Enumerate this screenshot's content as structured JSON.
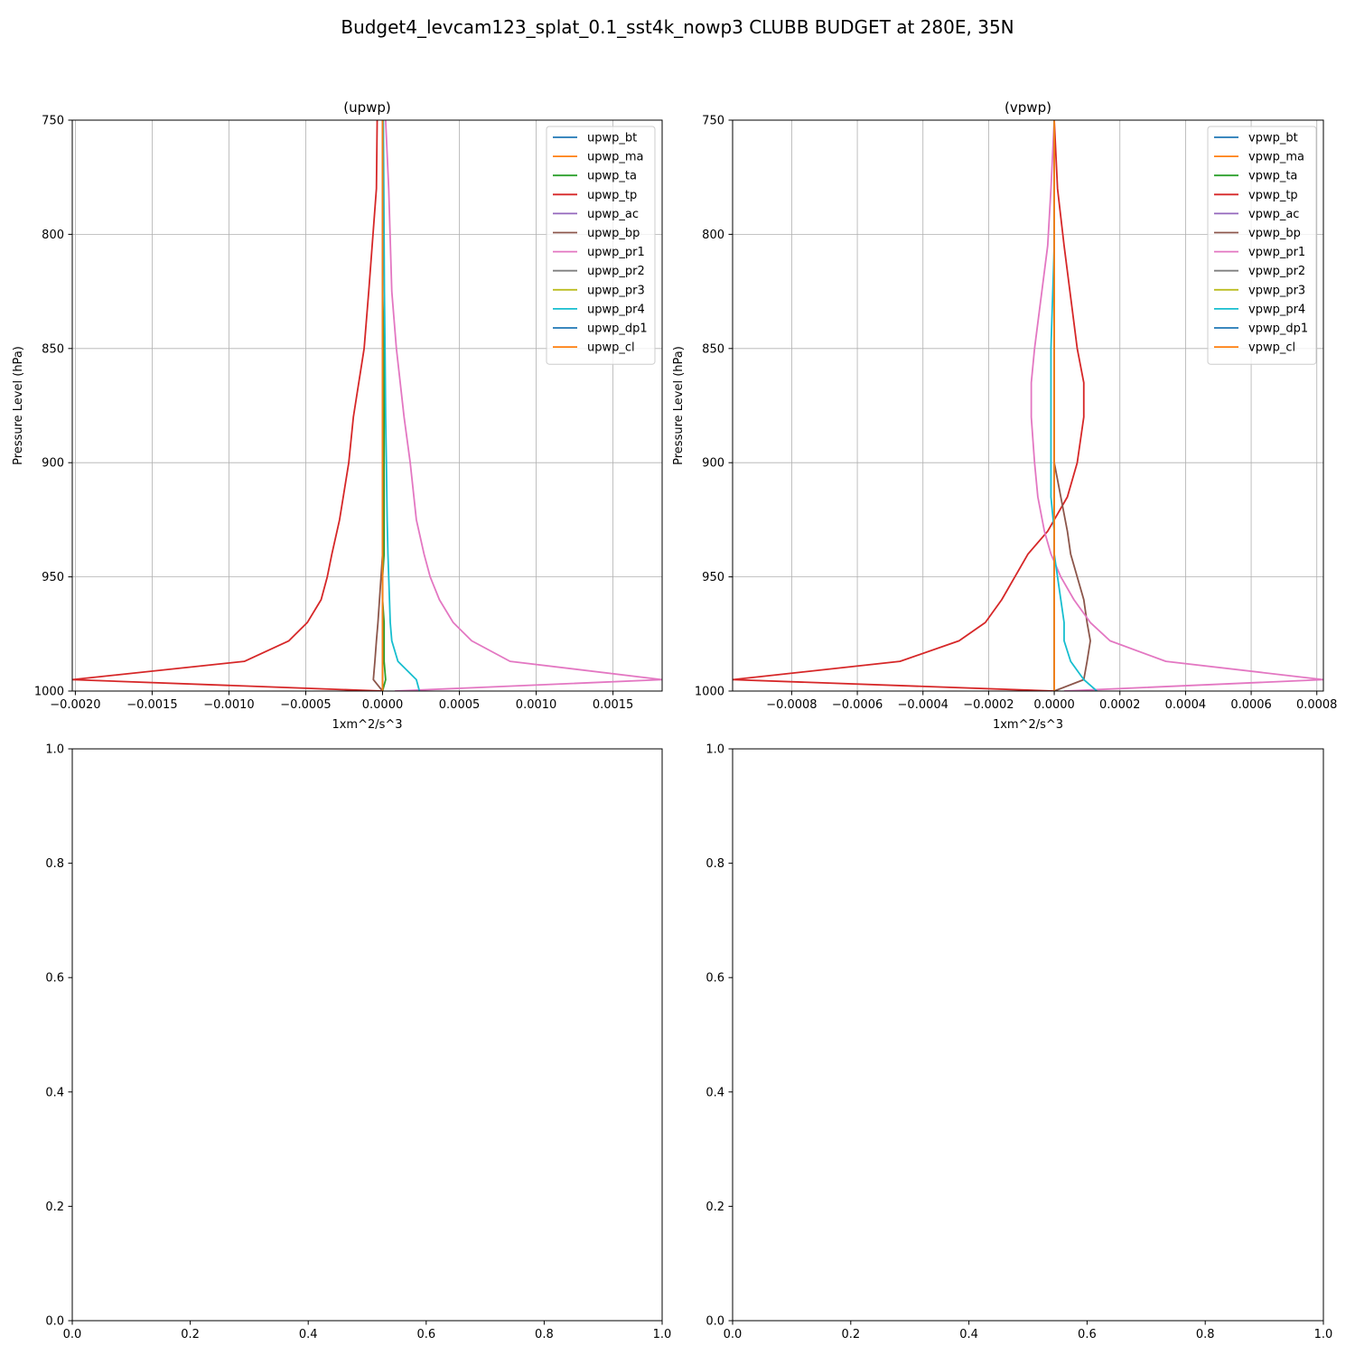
{
  "figure": {
    "suptitle": "Budget4_levcam123_splat_0.1_sst4k_nowp3 CLUBB BUDGET at 280E, 35N"
  },
  "chart_data": [
    {
      "type": "line",
      "title": "(upwp)",
      "xlabel": "1xm^2/s^3",
      "ylabel": "Pressure Level (hPa)",
      "xlim": [
        -0.00202,
        0.00182
      ],
      "ylim": [
        1000,
        750
      ],
      "y_inverted": true,
      "xticks": [
        -0.002,
        -0.0015,
        -0.001,
        -0.0005,
        0.0,
        0.0005,
        0.001,
        0.0015
      ],
      "xtick_labels": [
        "−0.0020",
        "−0.0015",
        "−0.0010",
        "−0.0005",
        "0.0000",
        "0.0005",
        "0.0010",
        "0.0015"
      ],
      "yticks": [
        750,
        800,
        850,
        900,
        950,
        1000
      ],
      "ytick_labels": [
        "750",
        "800",
        "850",
        "900",
        "950",
        "1000"
      ],
      "grid": true,
      "legend": "upper right",
      "series": [
        {
          "name": "upwp_bt",
          "color": "#1f77b4",
          "x": [
            0,
            0,
            0,
            0,
            0,
            0,
            0,
            0,
            0,
            0,
            0,
            0,
            0,
            0,
            0
          ],
          "y": [
            750,
            780,
            825,
            850,
            880,
            900,
            925,
            940,
            950,
            960,
            970,
            978,
            987,
            995,
            1000
          ]
        },
        {
          "name": "upwp_ma",
          "color": "#ff7f0e",
          "x": [
            0,
            0,
            0,
            0,
            0,
            0,
            0,
            0,
            0,
            0,
            0,
            0,
            0,
            0,
            0
          ],
          "y": [
            750,
            780,
            825,
            850,
            880,
            900,
            925,
            940,
            950,
            960,
            970,
            978,
            987,
            995,
            1000
          ]
        },
        {
          "name": "upwp_ta",
          "color": "#2ca02c",
          "x": [
            0,
            0,
            0,
            1e-05,
            1e-05,
            1e-05,
            1e-05,
            1e-05,
            0,
            0,
            1e-05,
            1e-05,
            1e-05,
            2e-05,
            0
          ],
          "y": [
            750,
            780,
            825,
            850,
            880,
            900,
            925,
            940,
            950,
            960,
            970,
            978,
            987,
            995,
            1000
          ]
        },
        {
          "name": "upwp_tp",
          "color": "#d62728",
          "x": [
            -3.5e-05,
            -4e-05,
            -9e-05,
            -0.00012,
            -0.00019,
            -0.00022,
            -0.00028,
            -0.00033,
            -0.00036,
            -0.0004,
            -0.00049,
            -0.00061,
            -0.0009,
            -0.00202,
            0
          ],
          "y": [
            750,
            780,
            825,
            850,
            880,
            900,
            925,
            940,
            950,
            960,
            970,
            978,
            987,
            995,
            1000
          ]
        },
        {
          "name": "upwp_ac",
          "color": "#9467bd",
          "x": [
            0,
            0,
            0,
            0,
            0,
            0,
            0,
            0,
            0,
            0,
            0,
            0,
            0,
            0,
            0
          ],
          "y": [
            750,
            780,
            825,
            850,
            880,
            900,
            925,
            940,
            950,
            960,
            970,
            978,
            987,
            995,
            1000
          ]
        },
        {
          "name": "upwp_bp",
          "color": "#8c564b",
          "x": [
            0,
            0,
            0,
            0,
            0,
            0,
            0,
            0,
            -1e-05,
            -2e-05,
            -3e-05,
            -4e-05,
            -5e-05,
            -6e-05,
            0
          ],
          "y": [
            750,
            780,
            825,
            850,
            880,
            900,
            925,
            940,
            950,
            960,
            970,
            978,
            987,
            995,
            1000
          ]
        },
        {
          "name": "upwp_pr1",
          "color": "#e377c2",
          "x": [
            2e-05,
            4e-05,
            6e-05,
            9e-05,
            0.00014,
            0.00018,
            0.00022,
            0.00027,
            0.00031,
            0.00037,
            0.00046,
            0.00058,
            0.00083,
            0.00182,
            8e-05
          ],
          "y": [
            750,
            780,
            825,
            850,
            880,
            900,
            925,
            940,
            950,
            960,
            970,
            978,
            987,
            995,
            1000
          ]
        },
        {
          "name": "upwp_pr2",
          "color": "#7f7f7f",
          "x": [
            0,
            0,
            0,
            0,
            0,
            0,
            0,
            0,
            0,
            0,
            0,
            0,
            0,
            0,
            0
          ],
          "y": [
            750,
            780,
            825,
            850,
            880,
            900,
            925,
            940,
            950,
            960,
            970,
            978,
            987,
            995,
            1000
          ]
        },
        {
          "name": "upwp_pr3",
          "color": "#bcbd22",
          "x": [
            0,
            0,
            0,
            0,
            0,
            0,
            0,
            0,
            0,
            0,
            0,
            0,
            0,
            0,
            0
          ],
          "y": [
            750,
            780,
            825,
            850,
            880,
            900,
            925,
            940,
            950,
            960,
            970,
            978,
            987,
            995,
            1000
          ]
        },
        {
          "name": "upwp_pr4",
          "color": "#17becf",
          "x": [
            5e-06,
            8e-06,
            1.2e-05,
            1.6e-05,
            2e-05,
            2.5e-05,
            3e-05,
            3.5e-05,
            4e-05,
            4.5e-05,
            5e-05,
            6e-05,
            0.0001,
            0.00022,
            0.00024
          ],
          "y": [
            750,
            780,
            825,
            850,
            880,
            900,
            925,
            940,
            950,
            960,
            970,
            978,
            987,
            995,
            1000
          ]
        },
        {
          "name": "upwp_dp1",
          "color": "#1f77b4",
          "x": [
            0,
            0,
            0,
            0,
            0,
            0,
            0,
            0,
            0,
            0,
            0,
            0,
            0,
            0,
            0
          ],
          "y": [
            750,
            780,
            825,
            850,
            880,
            900,
            925,
            940,
            950,
            960,
            970,
            978,
            987,
            995,
            1000
          ]
        },
        {
          "name": "upwp_cl",
          "color": "#ff7f0e",
          "x": [
            0,
            0,
            0,
            0,
            0,
            0,
            0,
            0,
            0,
            0,
            0,
            0,
            0,
            0,
            0
          ],
          "y": [
            750,
            780,
            825,
            850,
            880,
            900,
            925,
            940,
            950,
            960,
            970,
            978,
            987,
            995,
            1000
          ]
        }
      ]
    },
    {
      "type": "line",
      "title": "(vpwp)",
      "xlabel": "1xm^2/s^3",
      "ylabel": "Pressure Level (hPa)",
      "xlim": [
        -0.00098,
        0.00082
      ],
      "ylim": [
        1000,
        750
      ],
      "y_inverted": true,
      "xticks": [
        -0.0008,
        -0.0006,
        -0.0004,
        -0.0002,
        0.0,
        0.0002,
        0.0004,
        0.0006,
        0.0008
      ],
      "xtick_labels": [
        "−0.0008",
        "−0.0006",
        "−0.0004",
        "−0.0002",
        "0.0000",
        "0.0002",
        "0.0004",
        "0.0006",
        "0.0008"
      ],
      "yticks": [
        750,
        800,
        850,
        900,
        950,
        1000
      ],
      "ytick_labels": [
        "750",
        "800",
        "850",
        "900",
        "950",
        "1000"
      ],
      "grid": true,
      "legend": "upper right",
      "series": [
        {
          "name": "vpwp_bt",
          "color": "#1f77b4",
          "x": [
            0,
            0,
            0,
            0,
            0,
            0,
            0,
            0,
            0,
            0,
            0,
            0,
            0,
            0,
            0,
            0,
            0
          ],
          "y": [
            750,
            780,
            805,
            850,
            865,
            880,
            900,
            915,
            930,
            940,
            950,
            960,
            970,
            978,
            987,
            995,
            1000
          ]
        },
        {
          "name": "vpwp_ma",
          "color": "#ff7f0e",
          "x": [
            0,
            0,
            0,
            0,
            0,
            0,
            0,
            0,
            0,
            0,
            0,
            0,
            0,
            0,
            0,
            0,
            0
          ],
          "y": [
            750,
            780,
            805,
            850,
            865,
            880,
            900,
            915,
            930,
            940,
            950,
            960,
            970,
            978,
            987,
            995,
            1000
          ]
        },
        {
          "name": "vpwp_ta",
          "color": "#2ca02c",
          "x": [
            0,
            0,
            0,
            0,
            0,
            0,
            0,
            0,
            0,
            0,
            0,
            0,
            0,
            0,
            0,
            0,
            0
          ],
          "y": [
            750,
            780,
            805,
            850,
            865,
            880,
            900,
            915,
            930,
            940,
            950,
            960,
            970,
            978,
            987,
            995,
            1000
          ]
        },
        {
          "name": "vpwp_tp",
          "color": "#d62728",
          "x": [
            0,
            1e-05,
            3e-05,
            7e-05,
            9e-05,
            9e-05,
            7e-05,
            4e-05,
            -2e-05,
            -8e-05,
            -0.00012,
            -0.00016,
            -0.00021,
            -0.00029,
            -0.00047,
            -0.00098,
            0
          ],
          "y": [
            750,
            780,
            805,
            850,
            865,
            880,
            900,
            915,
            930,
            940,
            950,
            960,
            970,
            978,
            987,
            995,
            1000
          ]
        },
        {
          "name": "vpwp_ac",
          "color": "#9467bd",
          "x": [
            0,
            0,
            0,
            0,
            0,
            0,
            0,
            0,
            0,
            0,
            0,
            0,
            0,
            0,
            0,
            0,
            0
          ],
          "y": [
            750,
            780,
            805,
            850,
            865,
            880,
            900,
            915,
            930,
            940,
            950,
            960,
            970,
            978,
            987,
            995,
            1000
          ]
        },
        {
          "name": "vpwp_bp",
          "color": "#8c564b",
          "x": [
            0,
            0,
            0,
            0,
            0,
            0,
            0,
            2e-05,
            4e-05,
            5e-05,
            7e-05,
            9e-05,
            0.0001,
            0.00011,
            0.0001,
            9e-05,
            0
          ],
          "y": [
            750,
            780,
            805,
            850,
            865,
            880,
            900,
            915,
            930,
            940,
            950,
            960,
            970,
            978,
            987,
            995,
            1000
          ]
        },
        {
          "name": "vpwp_pr1",
          "color": "#e377c2",
          "x": [
            0,
            -1e-05,
            -2e-05,
            -6e-05,
            -7e-05,
            -7e-05,
            -6e-05,
            -5e-05,
            -3e-05,
            -1e-05,
            2e-05,
            6e-05,
            0.00011,
            0.00017,
            0.00034,
            0.00082,
            3e-05
          ],
          "y": [
            750,
            780,
            805,
            850,
            865,
            880,
            900,
            915,
            930,
            940,
            950,
            960,
            970,
            978,
            987,
            995,
            1000
          ]
        },
        {
          "name": "vpwp_pr2",
          "color": "#7f7f7f",
          "x": [
            0,
            0,
            0,
            0,
            0,
            0,
            0,
            0,
            0,
            0,
            0,
            0,
            0,
            0,
            0,
            0,
            0
          ],
          "y": [
            750,
            780,
            805,
            850,
            865,
            880,
            900,
            915,
            930,
            940,
            950,
            960,
            970,
            978,
            987,
            995,
            1000
          ]
        },
        {
          "name": "vpwp_pr3",
          "color": "#bcbd22",
          "x": [
            0,
            0,
            0,
            0,
            0,
            0,
            0,
            0,
            0,
            0,
            0,
            0,
            0,
            0,
            0,
            0,
            0
          ],
          "y": [
            750,
            780,
            805,
            850,
            865,
            880,
            900,
            915,
            930,
            940,
            950,
            960,
            970,
            978,
            987,
            995,
            1000
          ]
        },
        {
          "name": "vpwp_pr4",
          "color": "#17becf",
          "x": [
            0,
            0,
            0,
            -1e-05,
            -1e-05,
            -1e-05,
            -1e-05,
            -1e-05,
            0,
            0,
            1e-05,
            2e-05,
            3e-05,
            3e-05,
            5e-05,
            9e-05,
            0.00013
          ],
          "y": [
            750,
            780,
            805,
            850,
            865,
            880,
            900,
            915,
            930,
            940,
            950,
            960,
            970,
            978,
            987,
            995,
            1000
          ]
        },
        {
          "name": "vpwp_dp1",
          "color": "#1f77b4",
          "x": [
            0,
            0,
            0,
            0,
            0,
            0,
            0,
            0,
            0,
            0,
            0,
            0,
            0,
            0,
            0,
            0,
            0
          ],
          "y": [
            750,
            780,
            805,
            850,
            865,
            880,
            900,
            915,
            930,
            940,
            950,
            960,
            970,
            978,
            987,
            995,
            1000
          ]
        },
        {
          "name": "vpwp_cl",
          "color": "#ff7f0e",
          "x": [
            0,
            0,
            0,
            0,
            0,
            0,
            0,
            0,
            0,
            0,
            0,
            0,
            0,
            0,
            0,
            0,
            0
          ],
          "y": [
            750,
            780,
            805,
            850,
            865,
            880,
            900,
            915,
            930,
            940,
            950,
            960,
            970,
            978,
            987,
            995,
            1000
          ]
        }
      ]
    },
    {
      "type": "line",
      "title": "",
      "xlim": [
        0,
        1
      ],
      "ylim": [
        0,
        1
      ],
      "xticks": [
        0,
        0.2,
        0.4,
        0.6,
        0.8,
        1.0
      ],
      "xtick_labels": [
        "0.0",
        "0.2",
        "0.4",
        "0.6",
        "0.8",
        "1.0"
      ],
      "yticks": [
        0,
        0.2,
        0.4,
        0.6,
        0.8,
        1.0
      ],
      "ytick_labels": [
        "0.0",
        "0.2",
        "0.4",
        "0.6",
        "0.8",
        "1.0"
      ],
      "grid": false,
      "series": []
    },
    {
      "type": "line",
      "title": "",
      "xlim": [
        0,
        1
      ],
      "ylim": [
        0,
        1
      ],
      "xticks": [
        0,
        0.2,
        0.4,
        0.6,
        0.8,
        1.0
      ],
      "xtick_labels": [
        "0.0",
        "0.2",
        "0.4",
        "0.6",
        "0.8",
        "1.0"
      ],
      "yticks": [
        0,
        0.2,
        0.4,
        0.6,
        0.8,
        1.0
      ],
      "ytick_labels": [
        "0.0",
        "0.2",
        "0.4",
        "0.6",
        "0.8",
        "1.0"
      ],
      "grid": false,
      "series": []
    }
  ]
}
